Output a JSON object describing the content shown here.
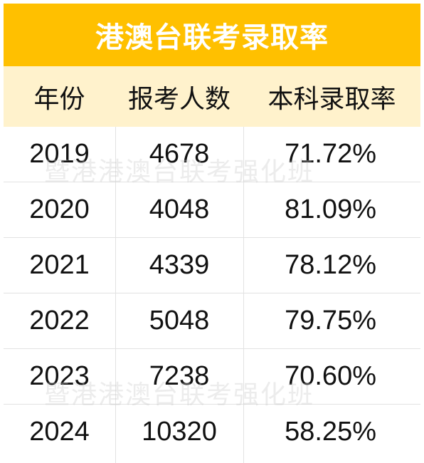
{
  "title": "港澳台联考录取率",
  "columns": [
    "年份",
    "报考人数",
    "本科录取率"
  ],
  "rows": [
    {
      "year": "2019",
      "applicants": "4678",
      "rate": "71.72%"
    },
    {
      "year": "2020",
      "applicants": "4048",
      "rate": "81.09%"
    },
    {
      "year": "2021",
      "applicants": "4339",
      "rate": "78.12%"
    },
    {
      "year": "2022",
      "applicants": "5048",
      "rate": "79.75%"
    },
    {
      "year": "2023",
      "applicants": "7238",
      "rate": "70.60%"
    },
    {
      "year": "2024",
      "applicants": "10320",
      "rate": "58.25%"
    }
  ],
  "watermark": "暨港港澳台联考强化班",
  "colors": {
    "title_bg": "#ffc000",
    "header_bg": "#fff2cc",
    "title_text": "#ffffff"
  }
}
